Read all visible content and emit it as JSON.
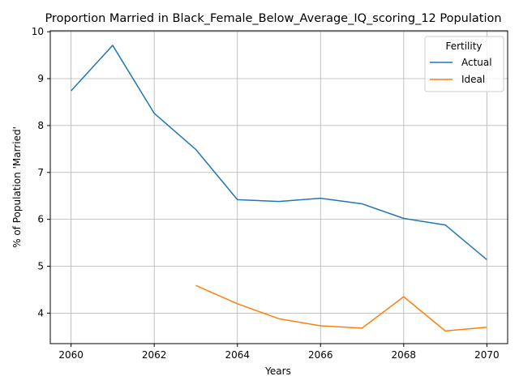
{
  "chart_data": {
    "type": "line",
    "title": "Proportion Married in Black_Female_Below_Average_IQ_scoring_12 Population",
    "xlabel": "Years",
    "ylabel": "% of Population 'Married'",
    "xlim": [
      2059.5,
      2070.5
    ],
    "ylim": [
      3.35,
      10.02
    ],
    "xticks": [
      2060,
      2062,
      2064,
      2066,
      2068,
      2070
    ],
    "yticks": [
      4,
      5,
      6,
      7,
      8,
      9,
      10
    ],
    "grid": true,
    "legend": {
      "title": "Fertility",
      "placement": "top-right"
    },
    "series": [
      {
        "name": "Actual",
        "color": "#1f77b4",
        "x": [
          2060,
          2061,
          2062,
          2063,
          2064,
          2065,
          2066,
          2067,
          2068,
          2069,
          2070
        ],
        "y": [
          8.74,
          9.71,
          8.26,
          7.49,
          6.42,
          6.38,
          6.45,
          6.33,
          6.02,
          5.88,
          5.14
        ]
      },
      {
        "name": "Ideal",
        "color": "#ff7f0e",
        "x": [
          2063,
          2064,
          2065,
          2066,
          2067,
          2068,
          2069,
          2070
        ],
        "y": [
          4.59,
          4.2,
          3.88,
          3.73,
          3.68,
          4.35,
          3.62,
          3.7
        ]
      }
    ]
  }
}
